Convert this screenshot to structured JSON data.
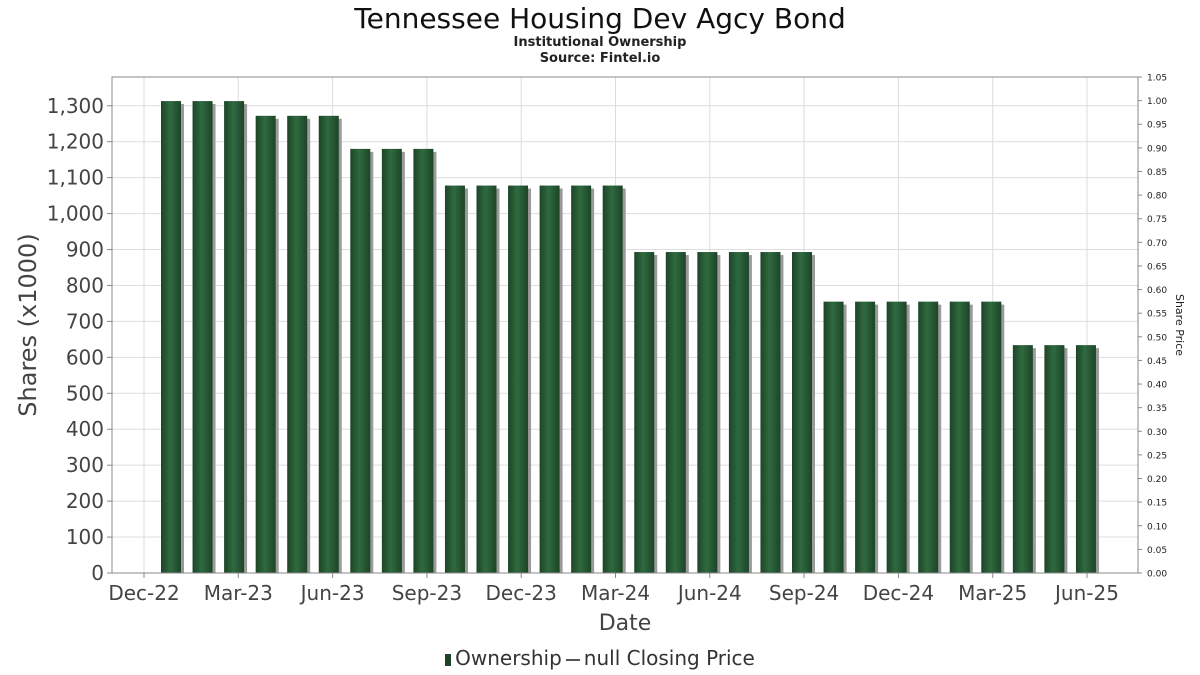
{
  "title": "Tennessee Housing Dev Agcy Bond",
  "subtitle": "Institutional Ownership",
  "source": "Source: Fintel.io",
  "colors": {
    "bar": "#1d4428",
    "bar_highlight": "#2f6a3f",
    "bar_shadow": "#9a9a9a",
    "grid": "#dddddd",
    "axis": "#888888"
  },
  "legend": {
    "ownership_label": "Ownership",
    "price_label": "null Closing Price"
  },
  "chart_data": {
    "type": "bar",
    "xlabel": "Date",
    "ylabel": "Shares (x1000)",
    "y2label": "Share Price",
    "ylim": [
      0,
      1380
    ],
    "y2lim": [
      0,
      1.05
    ],
    "grid": true,
    "legend_position": "bottom",
    "x_tick_labels": [
      "Dec-22",
      "Mar-23",
      "Jun-23",
      "Sep-23",
      "Dec-23",
      "Mar-24",
      "Jun-24",
      "Sep-24",
      "Dec-24",
      "Mar-25",
      "Jun-25"
    ],
    "y_tick_labels": [
      "0",
      "100",
      "200",
      "300",
      "400",
      "500",
      "600",
      "700",
      "800",
      "900",
      "1,000",
      "1,100",
      "1,200",
      "1,300"
    ],
    "y2_tick_labels": [
      "0.00",
      "0.05",
      "0.10",
      "0.15",
      "0.20",
      "0.25",
      "0.30",
      "0.35",
      "0.40",
      "0.45",
      "0.50",
      "0.55",
      "0.60",
      "0.65",
      "0.70",
      "0.75",
      "0.80",
      "0.85",
      "0.90",
      "0.95",
      "1.00",
      "1.05"
    ],
    "series": [
      {
        "name": "Ownership",
        "values": [
          1313,
          1313,
          1313,
          1272,
          1272,
          1272,
          1180,
          1180,
          1180,
          1078,
          1078,
          1078,
          1078,
          1078,
          1078,
          893,
          893,
          893,
          893,
          893,
          893,
          755,
          755,
          755,
          755,
          755,
          755,
          634,
          634,
          634
        ]
      }
    ]
  }
}
